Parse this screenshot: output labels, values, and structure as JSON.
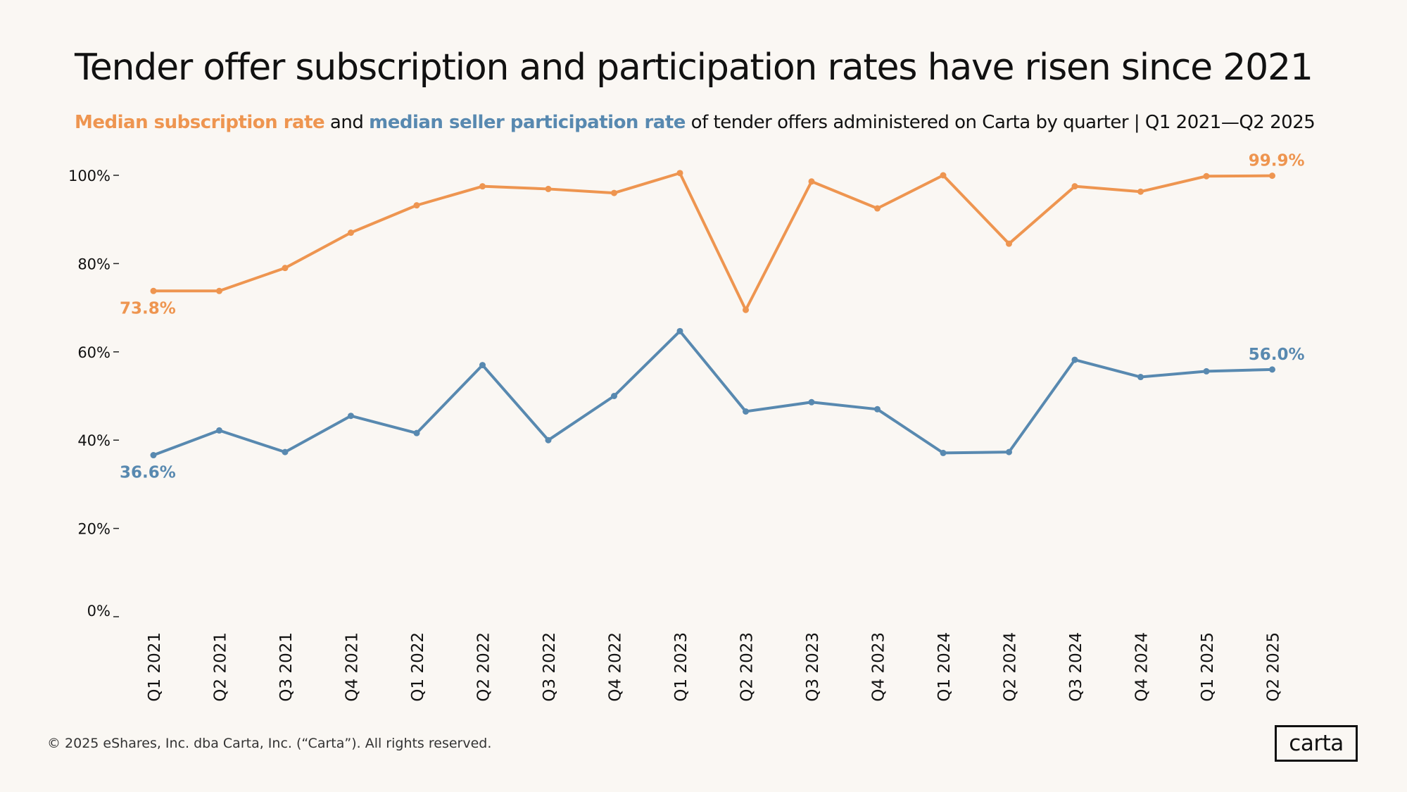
{
  "title": "Tender offer subscription and participation rates have risen since 2021",
  "subtitle": {
    "part1": "Median subscription rate",
    "part2": " and ",
    "part3": "median seller participation rate",
    "part4": " of tender offers administered on Carta by quarter | Q1 2021—Q2 2025"
  },
  "colors": {
    "subscription": "#ee9550",
    "participation": "#5889b0",
    "text": "#111111",
    "background": "#faf7f3"
  },
  "chart_data": {
    "type": "line",
    "title": "Tender offer subscription and participation rates have risen since 2021",
    "categories": [
      "Q1 2021",
      "Q2 2021",
      "Q3 2021",
      "Q4 2021",
      "Q1 2022",
      "Q2 2022",
      "Q3 2022",
      "Q4 2022",
      "Q1 2023",
      "Q2 2023",
      "Q3 2023",
      "Q4 2023",
      "Q1 2024",
      "Q2 2024",
      "Q3 2024",
      "Q4 2024",
      "Q1 2025",
      "Q2 2025"
    ],
    "series": [
      {
        "name": "Median subscription rate",
        "color": "#ee9550",
        "values": [
          73.8,
          73.8,
          79.0,
          87.0,
          93.2,
          97.5,
          96.9,
          96.0,
          100.5,
          69.5,
          98.6,
          92.5,
          100.0,
          84.5,
          97.5,
          96.3,
          99.8,
          99.9
        ],
        "start_label": "73.8%",
        "end_label": "99.9%"
      },
      {
        "name": "Median seller participation rate",
        "color": "#5889b0",
        "values": [
          36.6,
          42.2,
          37.3,
          45.5,
          41.6,
          57.0,
          40.0,
          50.0,
          64.7,
          46.5,
          48.6,
          47.0,
          37.1,
          37.3,
          58.2,
          54.3,
          55.6,
          56.0
        ],
        "start_label": "36.6%",
        "end_label": "56.0%"
      }
    ],
    "ytick_labels": [
      "0%",
      "20%",
      "40%",
      "60%",
      "80%",
      "100%"
    ],
    "ytick_values": [
      0,
      20,
      40,
      60,
      80,
      100
    ],
    "ylim": [
      0,
      105
    ],
    "xlabel": "",
    "ylabel": "",
    "grid": false,
    "legend": "none"
  },
  "footer": "© 2025 eShares, Inc. dba Carta, Inc. (“Carta”). All rights reserved.",
  "logo_text": "carta"
}
